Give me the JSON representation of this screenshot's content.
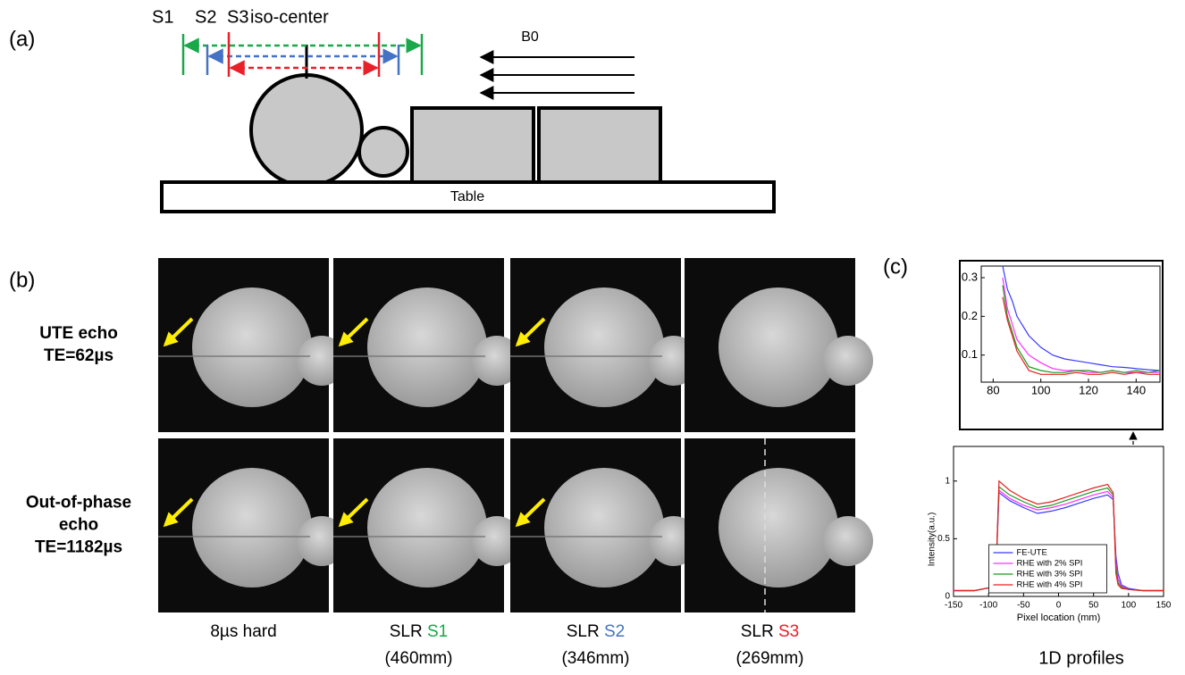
{
  "panel_a": {
    "label": "(a)",
    "slices": [
      {
        "label": "S1",
        "color": "#19a84a"
      },
      {
        "label": "S2",
        "color": "#4472c4"
      },
      {
        "label": "S3",
        "color": "#e8202a"
      }
    ],
    "iso_center": "iso-center",
    "field": "B0",
    "table": "Table"
  },
  "panel_b": {
    "label": "(b)",
    "rows": [
      {
        "lines": [
          "UTE echo",
          "TE=62µs"
        ]
      },
      {
        "lines": [
          "Out-of-phase",
          "echo",
          "TE=1182µs"
        ]
      }
    ],
    "columns": [
      {
        "text": "8µs hard"
      },
      {
        "text": "SLR",
        "slice": "S1",
        "size": "(460mm)"
      },
      {
        "text": "SLR",
        "slice": "S2",
        "size": "(346mm)"
      },
      {
        "text": "SLR",
        "slice": "S3",
        "size": "(269mm)"
      }
    ]
  },
  "panel_c": {
    "label": "(c)",
    "caption": "1D profiles"
  },
  "chart_data": [
    {
      "type": "line",
      "x": [
        84,
        86,
        88,
        90,
        95,
        100,
        105,
        110,
        115,
        120,
        125,
        130,
        135,
        140,
        145,
        150
      ],
      "xlim": [
        75,
        150
      ],
      "xticks": [
        80,
        100,
        120,
        140
      ],
      "ylim": [
        0.03,
        0.33
      ],
      "yticks": [
        0.1,
        0.2,
        0.3
      ],
      "series": [
        {
          "color": "#3a3aff",
          "values": [
            0.33,
            0.27,
            0.24,
            0.2,
            0.15,
            0.12,
            0.1,
            0.09,
            0.085,
            0.08,
            0.075,
            0.07,
            0.068,
            0.065,
            0.062,
            0.06
          ]
        },
        {
          "color": "#ff2cff",
          "values": [
            0.3,
            0.22,
            0.18,
            0.14,
            0.1,
            0.08,
            0.065,
            0.06,
            0.06,
            0.055,
            0.055,
            0.06,
            0.055,
            0.055,
            0.055,
            0.055
          ]
        },
        {
          "color": "#1a9a1a",
          "values": [
            0.28,
            0.2,
            0.16,
            0.12,
            0.07,
            0.06,
            0.055,
            0.055,
            0.06,
            0.06,
            0.055,
            0.06,
            0.055,
            0.06,
            0.055,
            0.06
          ]
        },
        {
          "color": "#e82020",
          "values": [
            0.25,
            0.19,
            0.15,
            0.11,
            0.06,
            0.05,
            0.05,
            0.05,
            0.055,
            0.05,
            0.05,
            0.055,
            0.05,
            0.055,
            0.05,
            0.05
          ]
        }
      ]
    },
    {
      "type": "line",
      "xlabel": "Pixel location (mm)",
      "ylabel": "Intensity(a.u.)",
      "x": [
        -150,
        -120,
        -95,
        -90,
        -85,
        -70,
        -50,
        -30,
        -10,
        10,
        30,
        50,
        70,
        78,
        82,
        85,
        90,
        100,
        120,
        150
      ],
      "xlim": [
        -150,
        150
      ],
      "xticks": [
        -150,
        -100,
        -50,
        0,
        50,
        100,
        150
      ],
      "ylim": [
        0,
        1.3
      ],
      "yticks": [
        0,
        0.5,
        1
      ],
      "legend": "lower center",
      "series": [
        {
          "name": "FE-UTE",
          "color": "#3a3aff",
          "values": [
            0.05,
            0.05,
            0.08,
            0.1,
            0.9,
            0.83,
            0.77,
            0.72,
            0.74,
            0.77,
            0.81,
            0.85,
            0.88,
            0.84,
            0.35,
            0.2,
            0.1,
            0.07,
            0.05,
            0.05
          ]
        },
        {
          "name": "RHE with 2% SPI",
          "color": "#ff2cff",
          "values": [
            0.05,
            0.05,
            0.08,
            0.1,
            0.92,
            0.85,
            0.79,
            0.75,
            0.77,
            0.8,
            0.84,
            0.88,
            0.91,
            0.86,
            0.3,
            0.15,
            0.09,
            0.06,
            0.05,
            0.05
          ]
        },
        {
          "name": "RHE with 3% SPI",
          "color": "#1a9a1a",
          "values": [
            0.05,
            0.05,
            0.08,
            0.1,
            0.95,
            0.88,
            0.82,
            0.77,
            0.79,
            0.83,
            0.87,
            0.91,
            0.94,
            0.88,
            0.25,
            0.12,
            0.08,
            0.06,
            0.05,
            0.05
          ]
        },
        {
          "name": "RHE with 4% SPI",
          "color": "#e82020",
          "values": [
            0.05,
            0.05,
            0.08,
            0.1,
            1.0,
            0.92,
            0.85,
            0.8,
            0.82,
            0.86,
            0.9,
            0.94,
            0.97,
            0.9,
            0.2,
            0.1,
            0.07,
            0.06,
            0.05,
            0.05
          ]
        }
      ]
    }
  ]
}
